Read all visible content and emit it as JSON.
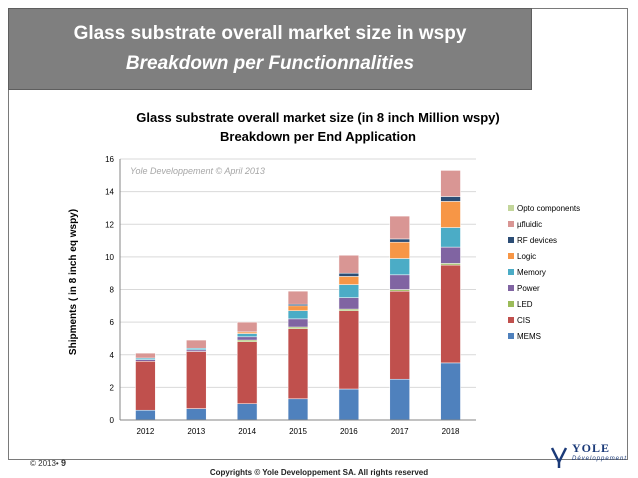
{
  "banner": {
    "title": "Glass substrate overall market size in wspy",
    "subtitle": "Breakdown per  Functionnalities"
  },
  "footer": {
    "slide_prefix": "© 2013•",
    "slide_number": "9",
    "copyright": "Copyrights © Yole Developpement SA. All rights reserved",
    "logo_text": "YOLE",
    "logo_sub": "Développement"
  },
  "chart_data": {
    "type": "bar",
    "stacked": true,
    "title": "Glass substrate overall market size (in 8 inch Million wspy)",
    "subtitle": "Breakdown per End Application",
    "watermark": "Yole Developpement © April 2013",
    "xlabel": "",
    "ylabel": "Shipments ( in 8 inch eq wspy)",
    "ylim": [
      0,
      16
    ],
    "yticks": [
      0,
      2,
      4,
      6,
      8,
      10,
      12,
      14,
      16
    ],
    "grid": true,
    "legend_position": "right",
    "categories": [
      "2012",
      "2013",
      "2014",
      "2015",
      "2016",
      "2017",
      "2018"
    ],
    "series": [
      {
        "name": "MEMS",
        "color": "#4f81bd",
        "values": [
          0.6,
          0.7,
          1.0,
          1.3,
          1.9,
          2.5,
          3.5
        ]
      },
      {
        "name": "CIS",
        "color": "#c0504d",
        "values": [
          3.0,
          3.5,
          3.8,
          4.3,
          4.8,
          5.4,
          6.0
        ]
      },
      {
        "name": "LED",
        "color": "#9bbb59",
        "values": [
          0.0,
          0.0,
          0.1,
          0.1,
          0.1,
          0.1,
          0.1
        ]
      },
      {
        "name": "Power",
        "color": "#8064a2",
        "values": [
          0.1,
          0.1,
          0.2,
          0.5,
          0.7,
          0.9,
          1.0
        ]
      },
      {
        "name": "Memory",
        "color": "#4bacc6",
        "values": [
          0.1,
          0.1,
          0.2,
          0.5,
          0.8,
          1.0,
          1.2
        ]
      },
      {
        "name": "Logic",
        "color": "#f79646",
        "values": [
          0.0,
          0.0,
          0.1,
          0.3,
          0.5,
          1.0,
          1.6
        ]
      },
      {
        "name": "RF devices",
        "color": "#2c4d75",
        "values": [
          0.0,
          0.0,
          0.0,
          0.1,
          0.2,
          0.2,
          0.3
        ]
      },
      {
        "name": "µfluidic",
        "color": "#d99694",
        "values": [
          0.3,
          0.5,
          0.6,
          0.8,
          1.1,
          1.4,
          1.6
        ]
      },
      {
        "name": "Opto components",
        "color": "#c3d69b",
        "values": [
          0.0,
          0.0,
          0.0,
          0.0,
          0.0,
          0.0,
          0.0
        ]
      }
    ]
  }
}
